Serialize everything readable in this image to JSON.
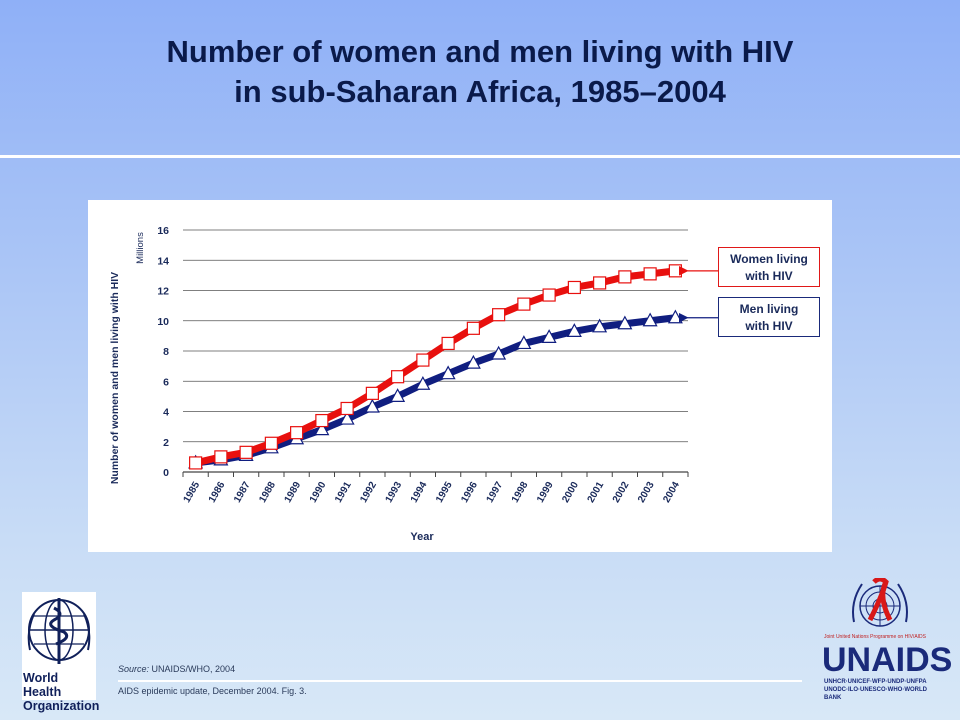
{
  "slide": {
    "title_line1": "Number of women and men living with HIV",
    "title_line2": "in sub-Saharan Africa, 1985–2004"
  },
  "chart_data": {
    "type": "line",
    "title": "",
    "xlabel": "Year",
    "ylabel": "Number of women and men living with HIV",
    "yunit": "Millions",
    "ylim": [
      0,
      16
    ],
    "yticks": [
      "0",
      "2",
      "4",
      "6",
      "8",
      "10",
      "12",
      "14",
      "16"
    ],
    "grid": true,
    "categories": [
      "1985",
      "1986",
      "1987",
      "1988",
      "1989",
      "1990",
      "1991",
      "1992",
      "1993",
      "1994",
      "1995",
      "1996",
      "1997",
      "1998",
      "1999",
      "2000",
      "2001",
      "2002",
      "2003",
      "2004"
    ],
    "series": [
      {
        "name": "Women living with HIV",
        "color": "#e8100e",
        "marker": "square",
        "values": [
          0.6,
          1.0,
          1.3,
          1.9,
          2.6,
          3.4,
          4.2,
          5.2,
          6.3,
          7.4,
          8.5,
          9.5,
          10.4,
          11.1,
          11.7,
          12.2,
          12.5,
          12.9,
          13.1,
          13.3
        ]
      },
      {
        "name": "Men living with HIV",
        "color": "#101e80",
        "marker": "triangle",
        "values": [
          0.6,
          0.8,
          1.1,
          1.6,
          2.2,
          2.8,
          3.5,
          4.3,
          5.0,
          5.8,
          6.5,
          7.2,
          7.8,
          8.5,
          8.9,
          9.3,
          9.6,
          9.8,
          10.0,
          10.2
        ]
      }
    ],
    "legend": [
      {
        "label_line1": "Women living",
        "label_line2": "with HIV"
      },
      {
        "label_line1": "Men living",
        "label_line2": "with HIV"
      }
    ]
  },
  "footer": {
    "source_label": "Source:",
    "source_text": "UNAIDS/WHO, 2004",
    "citation": "AIDS epidemic update, December 2004.  Fig. 3."
  },
  "logos": {
    "who_line1": "World Health",
    "who_line2": "Organization",
    "unaids_word": "UNAIDS",
    "unaids_tagline": "Joint United Nations Programme on HIV/AIDS",
    "unaids_sub1": "UNHCR·UNICEF·WFP·UNDP·UNFPA",
    "unaids_sub2": "UNODC·ILO·UNESCO·WHO·WORLD BANK"
  }
}
